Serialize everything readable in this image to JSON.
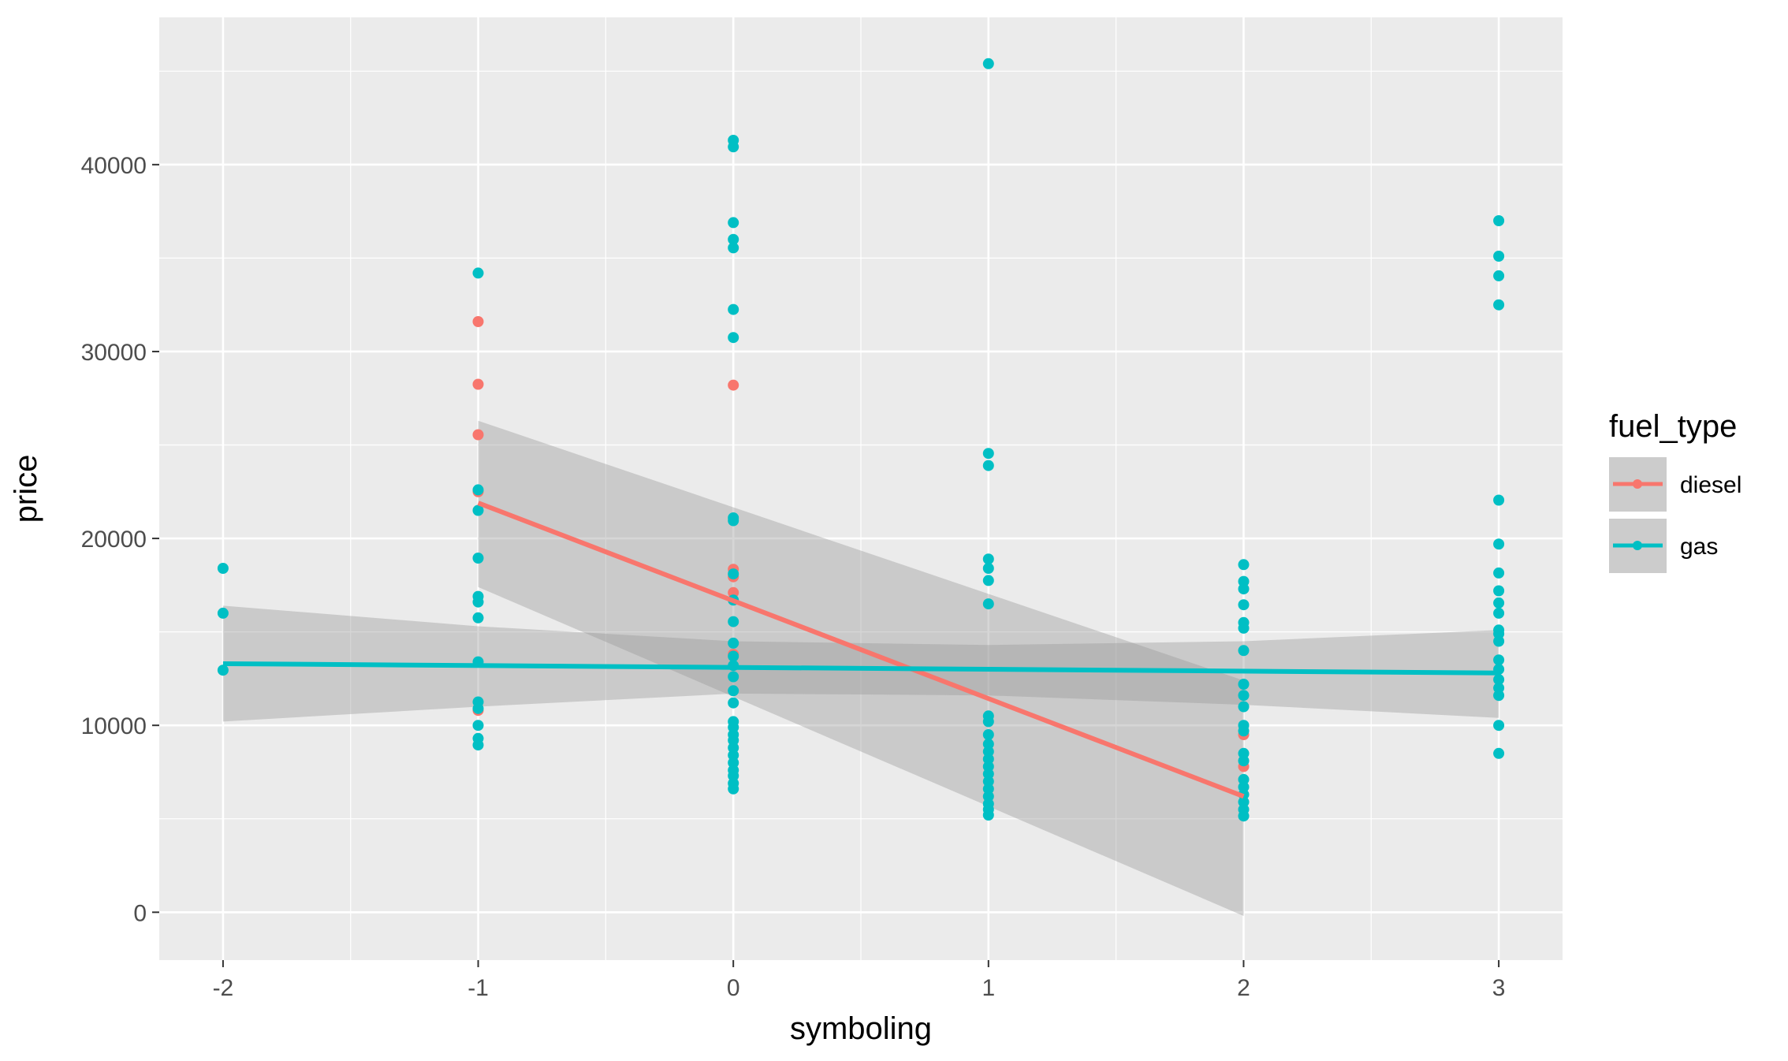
{
  "chart_data": {
    "type": "scatter",
    "title": "",
    "xlabel": "symboling",
    "ylabel": "price",
    "xlim": [
      -2.25,
      3.25
    ],
    "ylim": [
      -2560,
      47880
    ],
    "x_ticks": [
      "-2",
      "-1",
      "0",
      "1",
      "2",
      "3"
    ],
    "y_ticks": [
      "0",
      "10000",
      "20000",
      "30000",
      "40000"
    ],
    "grid": true,
    "legend": {
      "title": "fuel_type",
      "position": "right",
      "entries": [
        "diesel",
        "gas"
      ]
    },
    "colors": {
      "diesel": "#f8766d",
      "gas": "#00bfc4",
      "panel": "#ebebeb",
      "band": "#999999"
    },
    "series": [
      {
        "name": "diesel",
        "points": [
          [
            -1,
            31600
          ],
          [
            -1,
            28250
          ],
          [
            -1,
            25550
          ],
          [
            -1,
            22500
          ],
          [
            -1,
            10800
          ],
          [
            0,
            28200
          ],
          [
            0,
            18350
          ],
          [
            0,
            17950
          ],
          [
            0,
            17100
          ],
          [
            0,
            13800
          ],
          [
            2,
            9500
          ],
          [
            2,
            7800
          ]
        ],
        "fit": {
          "x": [
            -1,
            2
          ],
          "y": [
            21900,
            6200
          ]
        },
        "ci": {
          "x": [
            -1,
            2
          ],
          "lower": [
            17400,
            -200
          ],
          "upper": [
            26300,
            12400
          ]
        }
      },
      {
        "name": "gas",
        "points": [
          [
            -2,
            18400
          ],
          [
            -2,
            16000
          ],
          [
            -2,
            12950
          ],
          [
            -1,
            34200
          ],
          [
            -1,
            22600
          ],
          [
            -1,
            21500
          ],
          [
            -1,
            18950
          ],
          [
            -1,
            16900
          ],
          [
            -1,
            16600
          ],
          [
            -1,
            15750
          ],
          [
            -1,
            13400
          ],
          [
            -1,
            11250
          ],
          [
            -1,
            10900
          ],
          [
            -1,
            10000
          ],
          [
            -1,
            9300
          ],
          [
            -1,
            8950
          ],
          [
            0,
            41300
          ],
          [
            0,
            40950
          ],
          [
            0,
            36900
          ],
          [
            0,
            36000
          ],
          [
            0,
            35550
          ],
          [
            0,
            32250
          ],
          [
            0,
            30750
          ],
          [
            0,
            21100
          ],
          [
            0,
            20950
          ],
          [
            0,
            18100
          ],
          [
            0,
            16700
          ],
          [
            0,
            15550
          ],
          [
            0,
            14400
          ],
          [
            0,
            13700
          ],
          [
            0,
            13200
          ],
          [
            0,
            12600
          ],
          [
            0,
            11850
          ],
          [
            0,
            11200
          ],
          [
            0,
            10200
          ],
          [
            0,
            9900
          ],
          [
            0,
            9500
          ],
          [
            0,
            9200
          ],
          [
            0,
            8800
          ],
          [
            0,
            8400
          ],
          [
            0,
            8000
          ],
          [
            0,
            7600
          ],
          [
            0,
            7300
          ],
          [
            0,
            6900
          ],
          [
            0,
            6600
          ],
          [
            1,
            45400
          ],
          [
            1,
            24550
          ],
          [
            1,
            23900
          ],
          [
            1,
            18900
          ],
          [
            1,
            18400
          ],
          [
            1,
            17750
          ],
          [
            1,
            16500
          ],
          [
            1,
            10500
          ],
          [
            1,
            10200
          ],
          [
            1,
            9500
          ],
          [
            1,
            9000
          ],
          [
            1,
            8600
          ],
          [
            1,
            8200
          ],
          [
            1,
            7800
          ],
          [
            1,
            7400
          ],
          [
            1,
            7000
          ],
          [
            1,
            6600
          ],
          [
            1,
            6200
          ],
          [
            1,
            5800
          ],
          [
            1,
            5500
          ],
          [
            1,
            5200
          ],
          [
            2,
            18600
          ],
          [
            2,
            17700
          ],
          [
            2,
            17300
          ],
          [
            2,
            16450
          ],
          [
            2,
            15500
          ],
          [
            2,
            15200
          ],
          [
            2,
            14000
          ],
          [
            2,
            12200
          ],
          [
            2,
            11600
          ],
          [
            2,
            11000
          ],
          [
            2,
            10000
          ],
          [
            2,
            9700
          ],
          [
            2,
            8500
          ],
          [
            2,
            8100
          ],
          [
            2,
            7100
          ],
          [
            2,
            6700
          ],
          [
            2,
            6300
          ],
          [
            2,
            5900
          ],
          [
            2,
            5500
          ],
          [
            2,
            5150
          ],
          [
            3,
            37000
          ],
          [
            3,
            35100
          ],
          [
            3,
            34050
          ],
          [
            3,
            32500
          ],
          [
            3,
            22050
          ],
          [
            3,
            19700
          ],
          [
            3,
            18150
          ],
          [
            3,
            17200
          ],
          [
            3,
            16550
          ],
          [
            3,
            16000
          ],
          [
            3,
            15100
          ],
          [
            3,
            14900
          ],
          [
            3,
            14500
          ],
          [
            3,
            13500
          ],
          [
            3,
            13000
          ],
          [
            3,
            12450
          ],
          [
            3,
            12000
          ],
          [
            3,
            11600
          ],
          [
            3,
            10000
          ],
          [
            3,
            8500
          ]
        ],
        "fit": {
          "x": [
            -2,
            3
          ],
          "y": [
            13300,
            12800
          ]
        },
        "ci": {
          "x": [
            -2,
            -1,
            0,
            1,
            2,
            3
          ],
          "lower": [
            10200,
            11000,
            11700,
            11600,
            11100,
            10400
          ],
          "upper": [
            16400,
            15300,
            14500,
            14300,
            14500,
            15100
          ]
        }
      }
    ]
  }
}
